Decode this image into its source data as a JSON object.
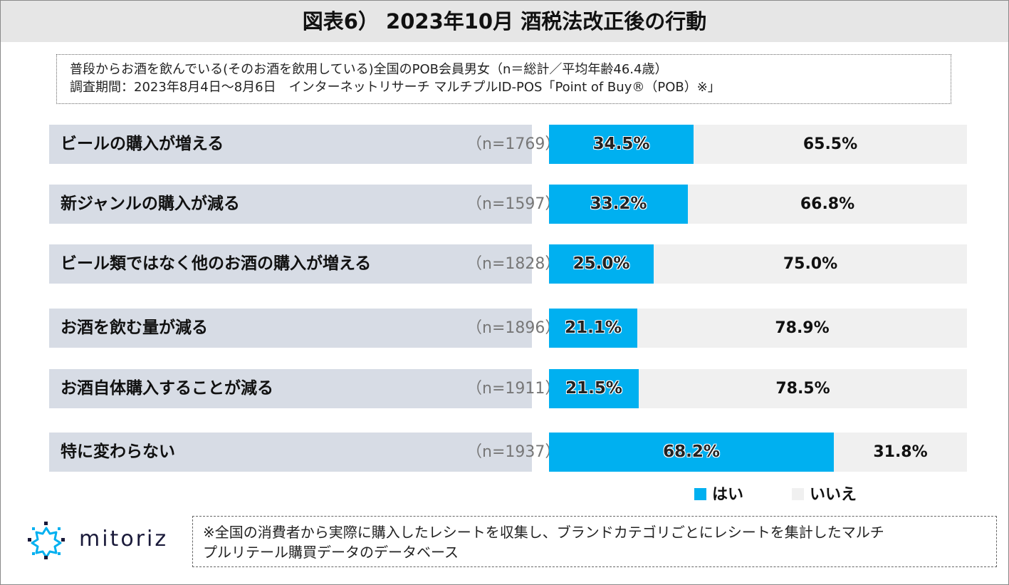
{
  "title": "図表6） 2023年10月 酒税法改正後の行動",
  "info": {
    "line1": "普段からお酒を飲んでいる(そのお酒を飲用している)全国のPOB会員男女（n＝総計／平均年齢46.4歳）",
    "line2": "調査期間：2023年8月4日～8月6日　インターネットリサーチ マルチプルID-POS「Point of Buy®（POB）※」"
  },
  "chart_data": {
    "type": "bar",
    "orientation": "horizontal",
    "stacked": true,
    "percent": true,
    "categories": [
      "ビールの購入が増える",
      "新ジャンルの購入が減る",
      "ビール類ではなく他のお酒の購入が増える",
      "お酒を飲む量が減る",
      "お酒自体購入することが減る",
      "特に変わらない"
    ],
    "sample_sizes": [
      "（n=1769）",
      "（n=1597）",
      "（n=1828）",
      "（n=1896）",
      "（n=1911）",
      "（n=1937）"
    ],
    "series": [
      {
        "name": "はい",
        "values": [
          34.5,
          33.2,
          25.0,
          21.1,
          21.5,
          68.2
        ],
        "labels": [
          "34.5%",
          "33.2%",
          "25.0%",
          "21.1%",
          "21.5%",
          "68.2%"
        ]
      },
      {
        "name": "いいえ",
        "values": [
          65.5,
          66.8,
          75.0,
          78.9,
          78.5,
          31.8
        ],
        "labels": [
          "65.5%",
          "66.8%",
          "75.0%",
          "78.9%",
          "78.5%",
          "31.8%"
        ]
      }
    ],
    "xlim": [
      0,
      100
    ],
    "legend_position": "bottom-right",
    "grid": false
  },
  "colors": {
    "yes": "#00b0f0",
    "no": "#f0f0f0",
    "label_bg": "#d7dce5"
  },
  "logo": {
    "text": "mitoriz",
    "icon": "mitoriz-logo-icon"
  },
  "footnote": {
    "line1": "※全国の消費者から実際に購入したレシートを収集し、ブランドカテゴリごとにレシートを集計したマルチ",
    "line2": "プルリテール購買データのデータベース"
  }
}
